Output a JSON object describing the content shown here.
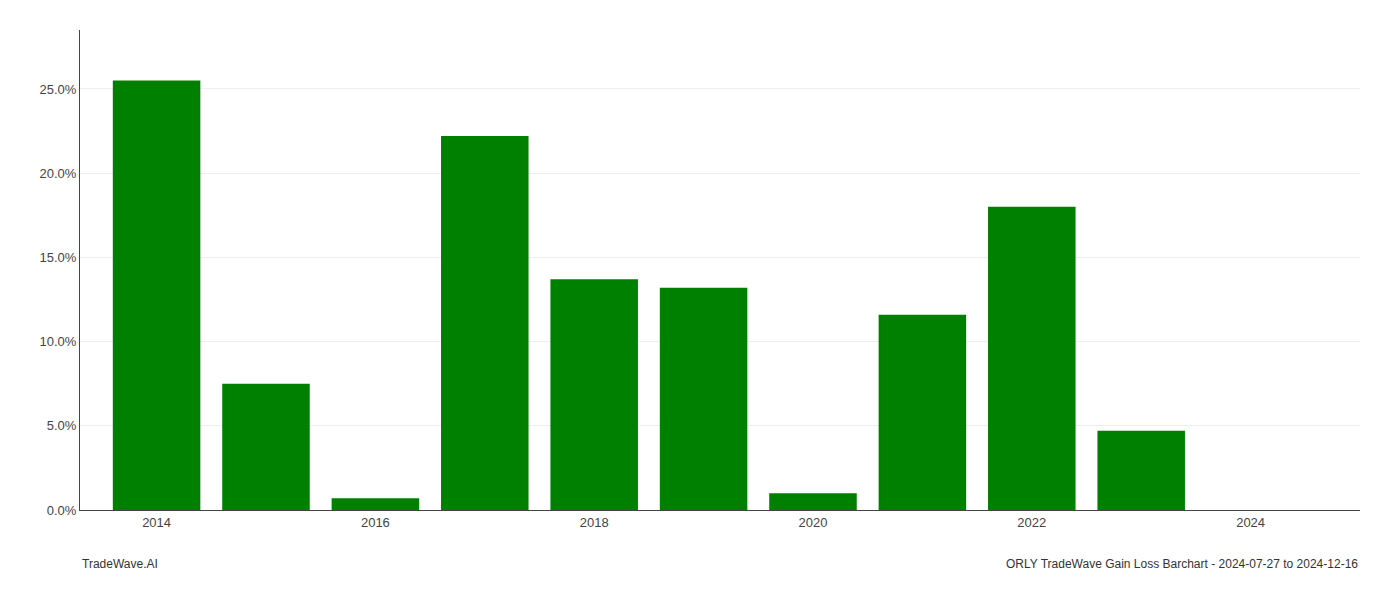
{
  "chart_data": {
    "type": "bar",
    "x": [
      2014,
      2015,
      2016,
      2017,
      2018,
      2019,
      2020,
      2021,
      2022,
      2023,
      2024
    ],
    "values": [
      0.255,
      0.075,
      0.007,
      0.222,
      0.137,
      0.132,
      0.01,
      0.116,
      0.18,
      0.047,
      0.0
    ],
    "color": "#008000",
    "xlim": [
      2013.3,
      2025.0
    ],
    "xticks": [
      2014,
      2016,
      2018,
      2020,
      2022,
      2024
    ],
    "ylim": [
      0,
      0.285
    ],
    "yticks": [
      {
        "value": 0.0,
        "label": "0.0%"
      },
      {
        "value": 0.05,
        "label": "5.0%"
      },
      {
        "value": 0.1,
        "label": "10.0%"
      },
      {
        "value": 0.15,
        "label": "15.0%"
      },
      {
        "value": 0.2,
        "label": "20.0%"
      },
      {
        "value": 0.25,
        "label": "25.0%"
      }
    ],
    "grid": "y",
    "annotations": [
      "TradeWave.AI",
      "ORLY TradeWave Gain Loss Barchart - 2024-07-27 to 2024-12-16"
    ]
  }
}
